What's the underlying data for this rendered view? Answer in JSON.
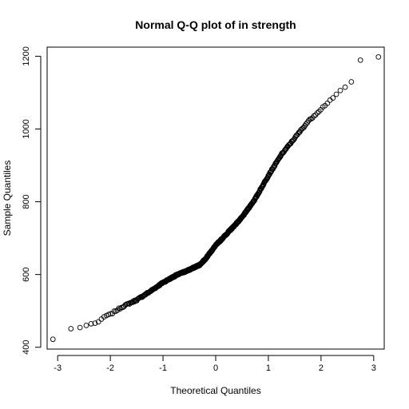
{
  "chart_data": {
    "type": "scatter",
    "title": "Normal Q-Q plot of in strength",
    "xlabel": "Theoretical Quantiles",
    "ylabel": "Sample Quantiles",
    "xlim": [
      -3.2,
      3.2
    ],
    "ylim": [
      395,
      1225
    ],
    "x_ticks": [
      -3,
      -2,
      -1,
      0,
      1,
      2,
      3
    ],
    "y_ticks": [
      400,
      600,
      800,
      1000,
      1200
    ],
    "grid": false,
    "marker": "open-circle",
    "n_points": 500,
    "points": [
      {
        "x": -3.09,
        "y": 422
      },
      {
        "x": -2.75,
        "y": 451
      },
      {
        "x": -2.58,
        "y": 454
      },
      {
        "x": -2.46,
        "y": 460
      },
      {
        "x": -2.37,
        "y": 464
      },
      {
        "x": -2.29,
        "y": 467
      },
      {
        "x": -2.2,
        "y": 471
      },
      {
        "x": -2.1,
        "y": 486
      },
      {
        "x": -2.0,
        "y": 490
      },
      {
        "x": -1.9,
        "y": 500
      },
      {
        "x": -1.75,
        "y": 513
      },
      {
        "x": -1.5,
        "y": 530
      },
      {
        "x": -1.25,
        "y": 553
      },
      {
        "x": -1.0,
        "y": 578
      },
      {
        "x": -0.75,
        "y": 598
      },
      {
        "x": -0.5,
        "y": 613
      },
      {
        "x": -0.3,
        "y": 627
      },
      {
        "x": -0.2,
        "y": 642
      },
      {
        "x": 0.0,
        "y": 680
      },
      {
        "x": 0.25,
        "y": 718
      },
      {
        "x": 0.5,
        "y": 757
      },
      {
        "x": 0.75,
        "y": 808
      },
      {
        "x": 1.0,
        "y": 872
      },
      {
        "x": 1.25,
        "y": 930
      },
      {
        "x": 1.5,
        "y": 975
      },
      {
        "x": 1.75,
        "y": 1020
      },
      {
        "x": 2.0,
        "y": 1055
      },
      {
        "x": 2.25,
        "y": 1090
      },
      {
        "x": 2.5,
        "y": 1120
      },
      {
        "x": 2.58,
        "y": 1130
      },
      {
        "x": 2.75,
        "y": 1190
      },
      {
        "x": 3.09,
        "y": 1198
      }
    ]
  }
}
